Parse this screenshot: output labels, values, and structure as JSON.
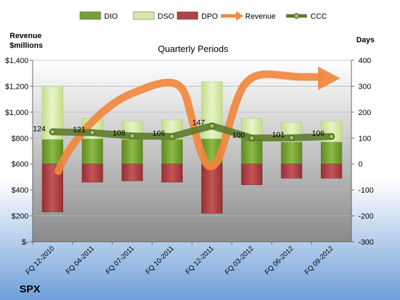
{
  "chart_data": {
    "type": "bar",
    "title": "Quarterly Periods",
    "ticker": "SPX",
    "left_axis_title": [
      "Revenue",
      "$millions"
    ],
    "right_axis_title": "Days",
    "categories": [
      "FQ 12-2010",
      "FQ 04-2011",
      "FQ 07-2011",
      "FQ 10-2011",
      "FQ 12-2011",
      "FQ 03-2012",
      "FQ 06-2012",
      "FQ 09-2012"
    ],
    "left_axis": {
      "ylim": [
        0,
        1400
      ],
      "ticks": [
        0,
        200,
        400,
        600,
        800,
        1000,
        1200,
        1400
      ],
      "tick_labels": [
        "$-",
        "$200",
        "$400",
        "$600",
        "$800",
        "$1,000",
        "$1,200",
        "$1,400"
      ]
    },
    "right_axis": {
      "ylim": [
        -300,
        400
      ],
      "ticks": [
        -300,
        -200,
        -100,
        0,
        100,
        200,
        300,
        400
      ],
      "tick_labels": [
        "-300",
        "-200",
        "-100",
        "0",
        "100",
        "200",
        "300",
        "400"
      ]
    },
    "legend": {
      "placement": "top",
      "entries": [
        {
          "name": "DIO",
          "kind": "bar",
          "color": "#77a033"
        },
        {
          "name": "DSO",
          "kind": "bar",
          "color": "#d4eaa6"
        },
        {
          "name": "DPO",
          "kind": "bar",
          "color": "#b04346"
        },
        {
          "name": "Revenue",
          "kind": "arrow",
          "color": "#f0883e"
        },
        {
          "name": "CCC",
          "kind": "line-marker",
          "color": "#5e7a2c"
        }
      ]
    },
    "series": [
      {
        "name": "DIO",
        "axis": "right",
        "values": [
          95,
          97,
          95,
          95,
          97,
          97,
          85,
          85
        ]
      },
      {
        "name": "DSO",
        "axis": "right",
        "values": [
          205,
          80,
          70,
          75,
          220,
          80,
          75,
          80
        ]
      },
      {
        "name": "DPO",
        "axis": "right",
        "values": [
          -185,
          -70,
          -65,
          -70,
          -190,
          -80,
          -55,
          -55
        ]
      },
      {
        "name": "CCC",
        "axis": "right",
        "values": [
          124,
          121,
          108,
          106,
          147,
          100,
          101,
          106
        ]
      },
      {
        "name": "Revenue",
        "axis": "left",
        "values": [
          null,
          null,
          null,
          null,
          null,
          null,
          null,
          null
        ]
      }
    ],
    "data_labels": [
      "124",
      "121",
      "108",
      "106",
      "147",
      "100",
      "101",
      "106"
    ],
    "grid": true,
    "colors": {
      "plot_top": "#ffffff",
      "plot_bottom": "#8a8a8a",
      "page_top": "#ffffff",
      "page_bottom": "#6f9fd8",
      "dio": "#77a033",
      "dso": "#d4eaa6",
      "dpo": "#b04346",
      "revenue": "#f0883e",
      "ccc": "#5e7a2c"
    }
  }
}
